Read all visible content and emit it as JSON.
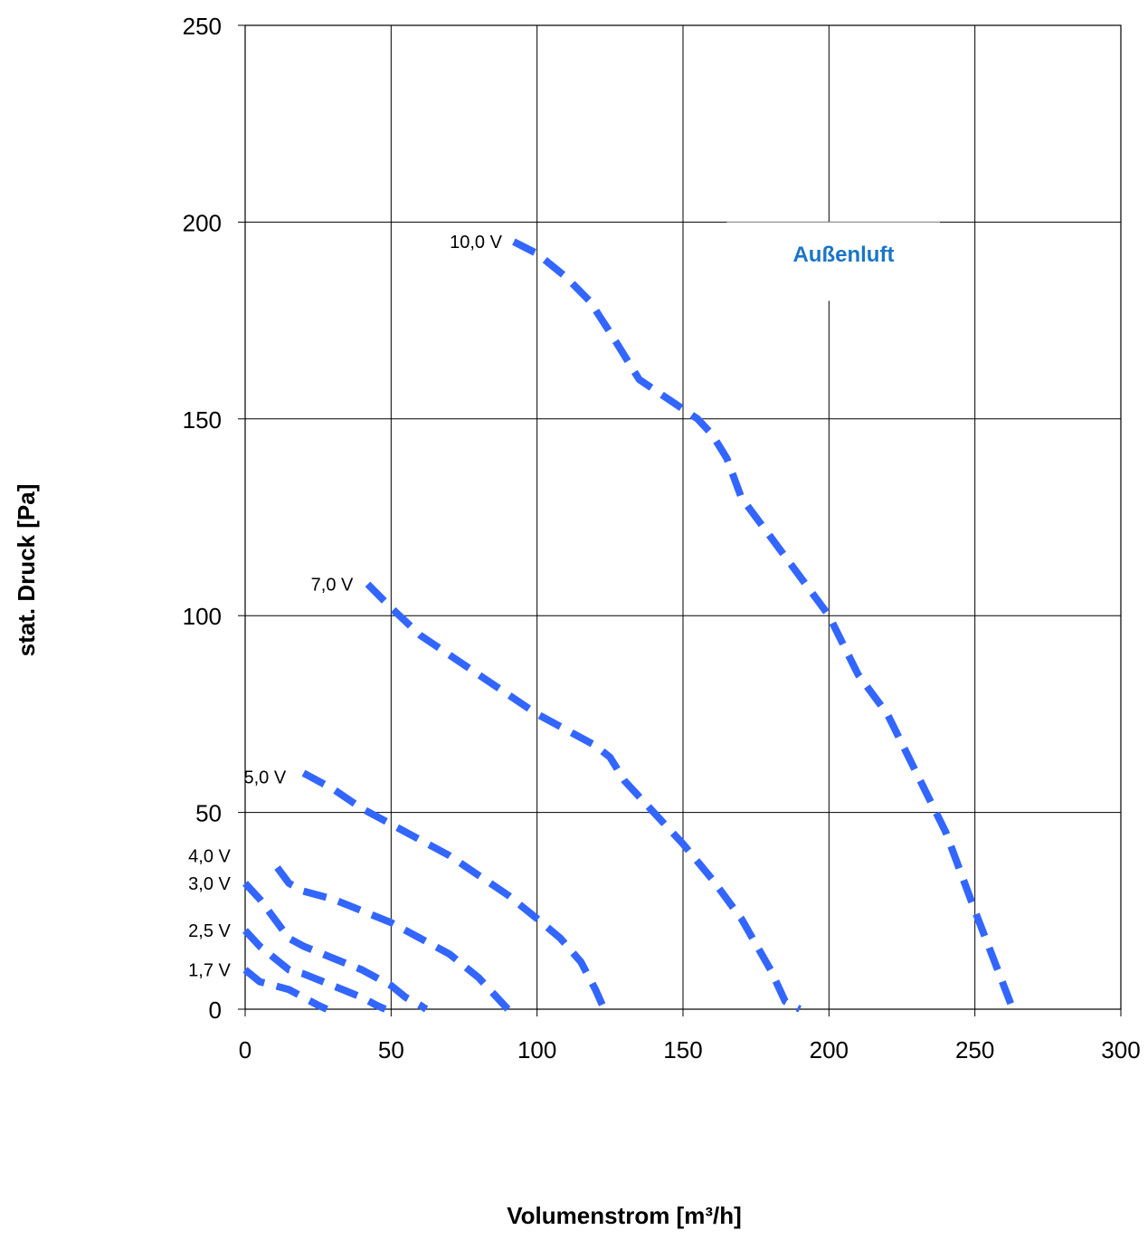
{
  "chart_data": {
    "type": "line",
    "xlabel": "Volumenstrom [m³/h]",
    "ylabel": "stat. Druck [Pa]",
    "xlim": [
      0,
      300
    ],
    "ylim": [
      0,
      250
    ],
    "x_ticks": [
      "0",
      "50",
      "100",
      "150",
      "200",
      "250",
      "300"
    ],
    "y_ticks": [
      "0",
      "50",
      "100",
      "150",
      "200",
      "250"
    ],
    "grid": true,
    "annotation": "Außenluft",
    "series_color": "#3366ff",
    "annotation_color": "#1a75c8",
    "series": [
      {
        "name": "10,0 V",
        "x": [
          92,
          100,
          110,
          118,
          125,
          135,
          145,
          155,
          160,
          165,
          170,
          180,
          190,
          200,
          210,
          220,
          230,
          240,
          250,
          263
        ],
        "y": [
          195,
          192,
          186,
          180,
          172,
          160,
          155,
          150,
          146,
          140,
          130,
          120,
          110,
          100,
          85,
          75,
          60,
          45,
          25,
          0
        ]
      },
      {
        "name": "7,0 V",
        "x": [
          42,
          50,
          60,
          70,
          80,
          90,
          100,
          110,
          120,
          125,
          130,
          140,
          150,
          160,
          170,
          180,
          185,
          190
        ],
        "y": [
          108,
          103,
          97,
          92,
          87,
          82,
          77,
          72,
          68,
          65,
          60,
          50,
          42,
          33,
          23,
          10,
          2,
          0
        ],
        "line_y": [
          108,
          102,
          95,
          90,
          85,
          80,
          75,
          71,
          67,
          64,
          58,
          50,
          42,
          33,
          23,
          10,
          2,
          0
        ]
      },
      {
        "name": "5,0 V",
        "x": [
          20,
          30,
          40,
          50,
          60,
          70,
          80,
          90,
          100,
          108,
          115,
          120,
          123
        ],
        "y": [
          60,
          56,
          51,
          47,
          43,
          39,
          34,
          29,
          23,
          18,
          12,
          5,
          0
        ]
      },
      {
        "name": "4,0 V",
        "x": [
          11,
          15,
          20,
          30,
          40,
          50,
          60,
          70,
          80,
          85,
          90
        ],
        "y": [
          36,
          32,
          30,
          28,
          25,
          22,
          18,
          14,
          8,
          4,
          0
        ]
      },
      {
        "name": "3,0 V",
        "x": [
          0,
          5,
          10,
          15,
          20,
          30,
          40,
          50,
          55,
          60,
          62
        ],
        "y": [
          32,
          28,
          23,
          18,
          16,
          13,
          10,
          6,
          3,
          1,
          0
        ]
      },
      {
        "name": "2,5 V",
        "x": [
          0,
          5,
          10,
          15,
          20,
          30,
          40,
          45,
          48
        ],
        "y": [
          20,
          16,
          13,
          10,
          9,
          6,
          3,
          1,
          0
        ]
      },
      {
        "name": "1,7 V",
        "x": [
          0,
          5,
          10,
          15,
          20,
          25,
          28
        ],
        "y": [
          10,
          7,
          6,
          5,
          3,
          1,
          0
        ]
      }
    ]
  }
}
